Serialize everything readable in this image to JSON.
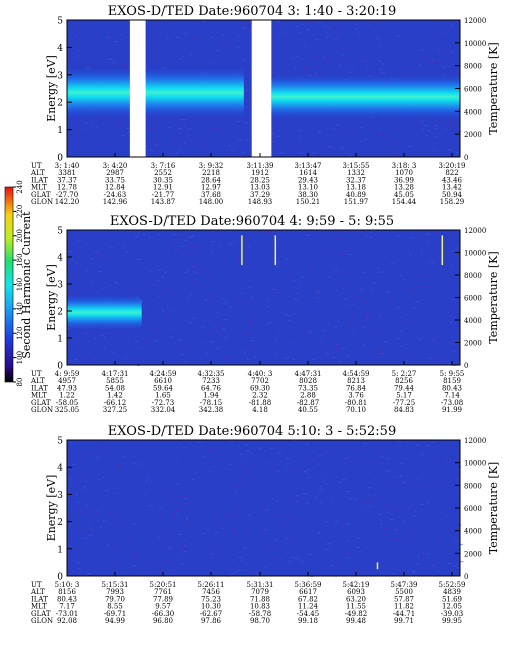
{
  "chart_data": [
    {
      "type": "heatmap",
      "title": "EXOS-D/TED  Date:960704  3: 1:40 - 3:20:19",
      "ylabel": "Energy [eV]",
      "y2label": "Temperature [K]",
      "yticks": [
        "0",
        "1",
        "2",
        "3",
        "4",
        "5"
      ],
      "y2ticks": [
        "0",
        "2000",
        "4000",
        "6000",
        "8000",
        "10000",
        "12000"
      ],
      "ylim": [
        0,
        5
      ],
      "y2lim": [
        0,
        12000
      ],
      "data_gaps": [
        [
          0.16,
          0.2
        ],
        [
          0.47,
          0.52
        ]
      ],
      "bands": [
        {
          "from": 0.0,
          "to": 0.45,
          "y_center": 2.35,
          "half_width": 0.45,
          "level": "high"
        },
        {
          "from": 0.52,
          "to": 1.0,
          "y_center": 2.2,
          "half_width": 0.4,
          "level": "high"
        }
      ],
      "orbit_table": {
        "labels": [
          "UT",
          "ALT",
          "ILAT",
          "MLT",
          "GLAT",
          "GLON"
        ],
        "columns": [
          [
            "3: 1:40",
            "3381",
            "37.37",
            "12.78",
            "-27.70",
            "142.20"
          ],
          [
            "3: 4:20",
            "2987",
            "33.75",
            "12.84",
            "-24.63",
            "142.96"
          ],
          [
            "3: 7:16",
            "2552",
            "30.35",
            "12.91",
            "-21.77",
            "143.87"
          ],
          [
            "3: 9:32",
            "2218",
            "28.64",
            "12.97",
            "37.68",
            "148.00"
          ],
          [
            "3:11:39",
            "1912",
            "28.25",
            "13.03",
            "37.29",
            "148.93"
          ],
          [
            "3:13:47",
            "1614",
            "29.43",
            "13.10",
            "38.30",
            "150.21"
          ],
          [
            "3:15:55",
            "1332",
            "32.37",
            "13.18",
            "40.89",
            "151.97"
          ],
          [
            "3:18: 3",
            "1070",
            "36.99",
            "13.28",
            "45.05",
            "154.44"
          ],
          [
            "3:20:19",
            "822",
            "43.46",
            "13.42",
            "50.94",
            "158.29"
          ]
        ]
      }
    },
    {
      "type": "heatmap",
      "title": "EXOS-D/TED  Date:960704  4: 9:59 - 5: 9:55",
      "ylabel": "Energy [eV]",
      "y2label": "Temperature [K]",
      "yticks": [
        "0",
        "1",
        "2",
        "3",
        "4",
        "5"
      ],
      "y2ticks": [
        "0",
        "2000",
        "4000",
        "6000",
        "8000",
        "10000",
        "12000"
      ],
      "ylim": [
        0,
        5
      ],
      "y2lim": [
        0,
        12000
      ],
      "bursts": [
        [
          0.0,
          0.19,
          1.95,
          0.4
        ]
      ],
      "spikes": [
        0.445,
        0.53,
        0.955
      ],
      "colorbar": {
        "label": "Second Harmonic Current",
        "ticks": [
          "80",
          "100",
          "120",
          "140",
          "160",
          "180",
          "200",
          "220",
          "240"
        ],
        "range": [
          80,
          240
        ]
      },
      "orbit_table": {
        "labels": [
          "UT",
          "ALT",
          "ILAT",
          "MLT",
          "GLAT",
          "GLON"
        ],
        "columns": [
          [
            "4: 9:59",
            "4957",
            "47.93",
            "1.22",
            "-58.05",
            "325.05"
          ],
          [
            "4:17:31",
            "5855",
            "54.08",
            "1.42",
            "-66.12",
            "327.25"
          ],
          [
            "4:24:59",
            "6610",
            "59.64",
            "1.65",
            "-72.73",
            "332.04"
          ],
          [
            "4:32:35",
            "7233",
            "64.76",
            "1.94",
            "-78.15",
            "342.38"
          ],
          [
            "4:40: 3",
            "7702",
            "69.30",
            "2.32",
            "-81.88",
            "4.18"
          ],
          [
            "4:47:31",
            "8028",
            "73.35",
            "2.88",
            "-82.87",
            "40.55"
          ],
          [
            "4:54:59",
            "8213",
            "76.84",
            "3.76",
            "-80.81",
            "70.10"
          ],
          [
            "5: 2:27",
            "8256",
            "79.44",
            "5.17",
            "-77.25",
            "84.83"
          ],
          [
            "5: 9:55",
            "8159",
            "80.43",
            "7.14",
            "-73.08",
            "91.99"
          ]
        ]
      }
    },
    {
      "type": "heatmap",
      "title": "EXOS-D/TED  Date:960704  5:10: 3 - 5:52:59",
      "ylabel": "Energy [eV]",
      "y2label": "Temperature [K]",
      "yticks": [
        "0",
        "1",
        "2",
        "3",
        "4",
        "5"
      ],
      "y2ticks": [
        "0",
        "2000",
        "4000",
        "6000",
        "8000",
        "10000",
        "12000"
      ],
      "ylim": [
        0,
        5
      ],
      "y2lim": [
        0,
        12000
      ],
      "spikes": [
        0.79
      ],
      "orbit_table": {
        "labels": [
          "UT",
          "ALT",
          "ILAT",
          "MLT",
          "GLAT",
          "GLON"
        ],
        "columns": [
          [
            "5:10: 3",
            "8156",
            "80.43",
            "7.17",
            "-73.01",
            "92.08"
          ],
          [
            "5:15:31",
            "7993",
            "79.70",
            "8.55",
            "-69.71",
            "94.99"
          ],
          [
            "5:20:51",
            "7761",
            "77.89",
            "9.57",
            "-66.30",
            "96.80"
          ],
          [
            "5:26:11",
            "7456",
            "75.23",
            "10.30",
            "-62.67",
            "97.86"
          ],
          [
            "5:31:31",
            "7079",
            "71.88",
            "10.83",
            "-58.78",
            "98.70"
          ],
          [
            "5:36:59",
            "6617",
            "67.82",
            "11.24",
            "-54.45",
            "99.18"
          ],
          [
            "5:42:19",
            "6093",
            "63.20",
            "11.55",
            "-49.82",
            "99.48"
          ],
          [
            "5:47:39",
            "5500",
            "57.87",
            "11.82",
            "-44.71",
            "99.71"
          ],
          [
            "5:52:59",
            "4839",
            "51.69",
            "12.05",
            "-39.03",
            "99.95"
          ]
        ]
      }
    }
  ]
}
